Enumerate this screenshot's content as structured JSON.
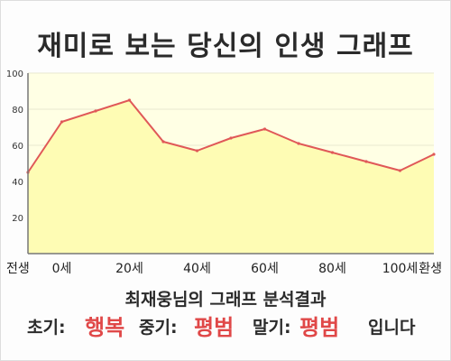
{
  "title": "재미로 보는 당신의 인생 그래프",
  "subtitle": "최재웅님의 그래프 분석결과",
  "result": {
    "early_label": "초기:",
    "early_value": "행복",
    "middle_label": "중기:",
    "middle_value": "평범",
    "late_label": "말기:",
    "late_value": "평범",
    "suffix": "입니다"
  },
  "colors": {
    "plot_fill": "#ffffe4",
    "area_fill": "#fefcb4",
    "line": "#e05858",
    "accent_text": "#e04848",
    "axis": "#777777",
    "grid": "#e8e8d0"
  },
  "chart_data": {
    "type": "area",
    "title": "재미로 보는 당신의 인생 그래프",
    "xlabel": "",
    "ylabel": "",
    "x_tick_labels": [
      "전생",
      "0세",
      "20세",
      "40세",
      "60세",
      "80세",
      "100세",
      "환생"
    ],
    "y_ticks": [
      20,
      40,
      60,
      80,
      100
    ],
    "ylim": [
      0,
      100
    ],
    "grid": true,
    "legend": "none",
    "points": [
      {
        "x": "전생",
        "y": 45
      },
      {
        "x": "0세",
        "y": 73
      },
      {
        "x": "10세",
        "y": 79
      },
      {
        "x": "20세",
        "y": 85
      },
      {
        "x": "30세",
        "y": 62
      },
      {
        "x": "40세",
        "y": 57
      },
      {
        "x": "50세",
        "y": 64
      },
      {
        "x": "60세",
        "y": 69
      },
      {
        "x": "70세",
        "y": 61
      },
      {
        "x": "80세",
        "y": 56
      },
      {
        "x": "90세",
        "y": 51
      },
      {
        "x": "100세",
        "y": 46
      },
      {
        "x": "환생",
        "y": 55
      }
    ]
  }
}
